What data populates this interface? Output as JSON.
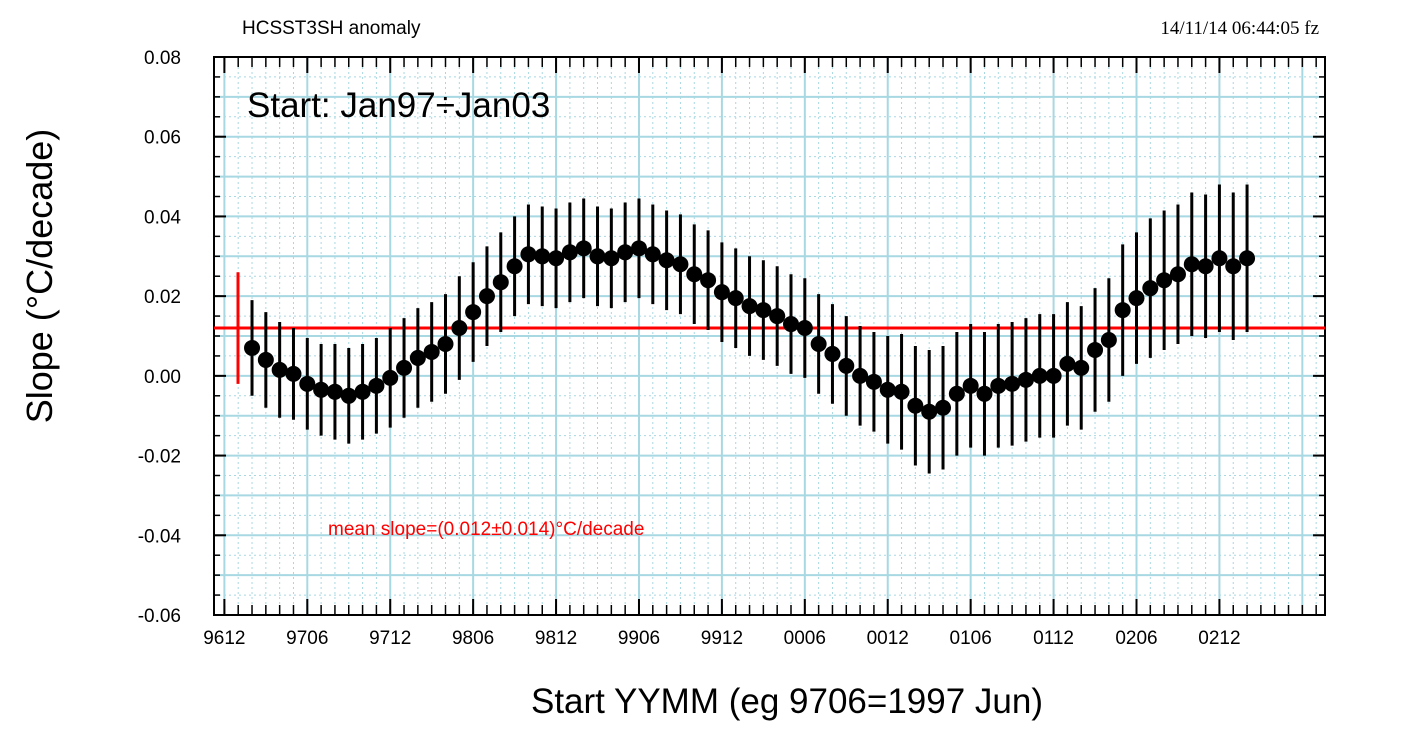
{
  "header": {
    "left": "HCSST3SH anomaly",
    "right": "14/11/14  06:44:05 fz"
  },
  "chart_data": {
    "type": "scatter",
    "title": "Start: Jan97÷Jan03",
    "xlabel": "Start YYMM (eg 9706=1997 Jun)",
    "ylabel": "Slope (°C/decade)",
    "ylim": [
      -0.06,
      0.08
    ],
    "yticks": [
      "0.08",
      "0.06",
      "0.04",
      "0.02",
      "0.00",
      "-0.02",
      "-0.04",
      "-0.06"
    ],
    "xticks": [
      "9612",
      "9706",
      "9712",
      "9806",
      "9812",
      "9906",
      "9912",
      "0006",
      "0012",
      "0106",
      "0112",
      "0206",
      "0212"
    ],
    "x_start": "1997-01",
    "grid": true,
    "annotation": "mean slope=(0.012±0.014)°C/decade",
    "mean_slope": 0.012,
    "mean_slope_error": 0.014,
    "colors": {
      "points": "#000000",
      "mean_line": "#ff0000",
      "grid": "#a8d8e2"
    },
    "series": [
      {
        "values": [
          0.007,
          0.004,
          0.0015,
          0.0005,
          -0.002,
          -0.0035,
          -0.004,
          -0.005,
          -0.004,
          -0.0025,
          -0.0005,
          0.002,
          0.0045,
          0.006,
          0.008,
          0.012,
          0.016,
          0.02,
          0.0235,
          0.0275,
          0.0305,
          0.03,
          0.0295,
          0.031,
          0.032,
          0.03,
          0.0295,
          0.031,
          0.032,
          0.0305,
          0.029,
          0.028,
          0.0255,
          0.024,
          0.021,
          0.0195,
          0.0175,
          0.0165,
          0.015,
          0.013,
          0.012,
          0.008,
          0.0055,
          0.0025,
          0.0,
          -0.0015,
          -0.0035,
          -0.004,
          -0.0075,
          -0.009,
          -0.008,
          -0.0045,
          -0.0025,
          -0.0045,
          -0.0025,
          -0.002,
          -0.001,
          0.0,
          0.0,
          0.003,
          0.002,
          0.0065,
          0.009,
          0.0165,
          0.0195,
          0.022,
          0.024,
          0.0255,
          0.028,
          0.0275,
          0.0295,
          0.0275,
          0.0295
        ],
        "errors": [
          0.012,
          0.012,
          0.012,
          0.0115,
          0.0115,
          0.0115,
          0.012,
          0.012,
          0.012,
          0.012,
          0.0125,
          0.0125,
          0.0125,
          0.0125,
          0.0125,
          0.013,
          0.0125,
          0.0125,
          0.0125,
          0.0125,
          0.0125,
          0.0125,
          0.0125,
          0.0125,
          0.0125,
          0.0125,
          0.0125,
          0.0125,
          0.0125,
          0.0125,
          0.0125,
          0.0125,
          0.0125,
          0.0125,
          0.0125,
          0.0125,
          0.0125,
          0.0125,
          0.0125,
          0.0125,
          0.0125,
          0.0125,
          0.0125,
          0.0125,
          0.0125,
          0.0125,
          0.0135,
          0.0145,
          0.015,
          0.0155,
          0.0155,
          0.0155,
          0.0155,
          0.0155,
          0.0155,
          0.0155,
          0.0155,
          0.0155,
          0.0155,
          0.0155,
          0.0155,
          0.0155,
          0.0155,
          0.0165,
          0.0165,
          0.0175,
          0.0175,
          0.0175,
          0.018,
          0.018,
          0.0185,
          0.0185,
          0.0185
        ]
      }
    ]
  }
}
